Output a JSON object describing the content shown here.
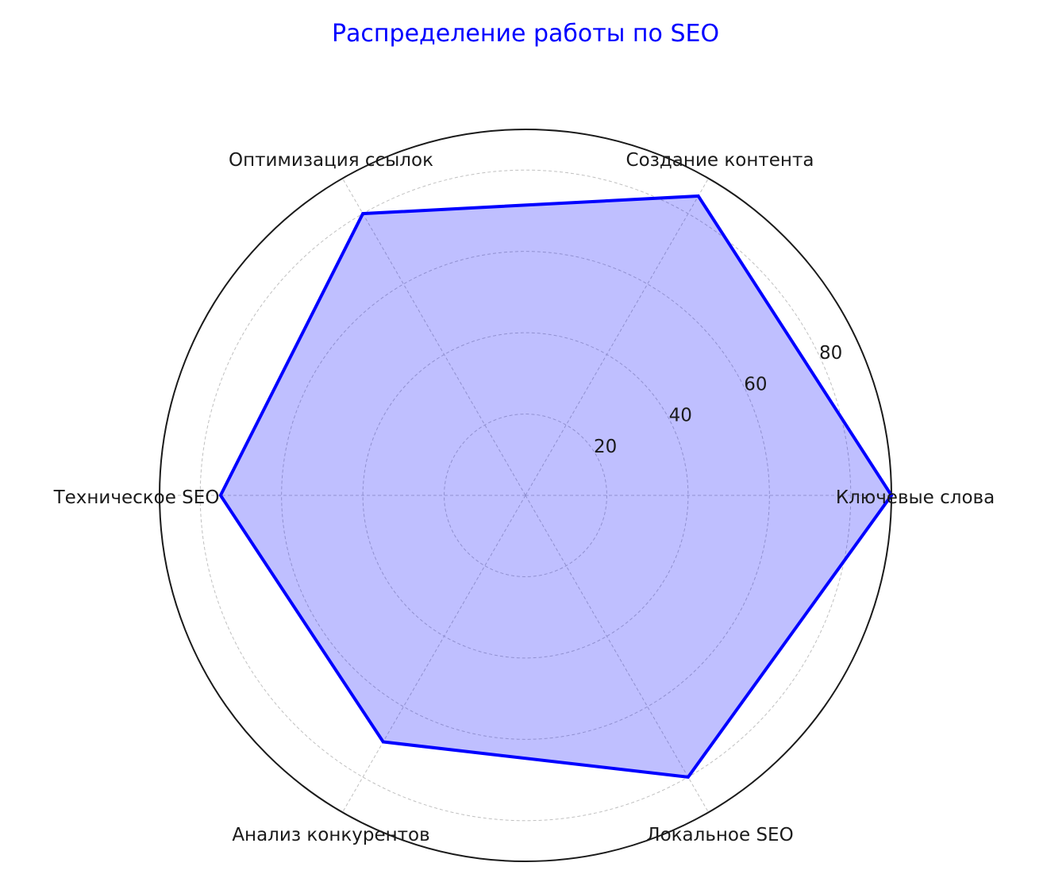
{
  "chart_data": {
    "type": "radar",
    "title": "Распределение работы по SEO",
    "categories": [
      "Ключевые слова",
      "Создание контента",
      "Оптимизация ссылок",
      "Техническое SEO",
      "Анализ конкурентов",
      "Локальное SEO"
    ],
    "values": [
      90,
      85,
      80,
      75,
      70,
      80
    ],
    "rlim": [
      0,
      90
    ],
    "r_ticks": [
      20,
      40,
      60,
      80
    ],
    "r_tick_labels": [
      "20",
      "40",
      "60",
      "80"
    ],
    "grid": true,
    "colors": {
      "title": "#0000ff",
      "line": "#0000ff",
      "fill": "#0000ff",
      "fill_opacity": 0.25,
      "grid": "#c0c0c0",
      "frame": "#1a1a1a",
      "text": "#1a1a1a"
    }
  }
}
